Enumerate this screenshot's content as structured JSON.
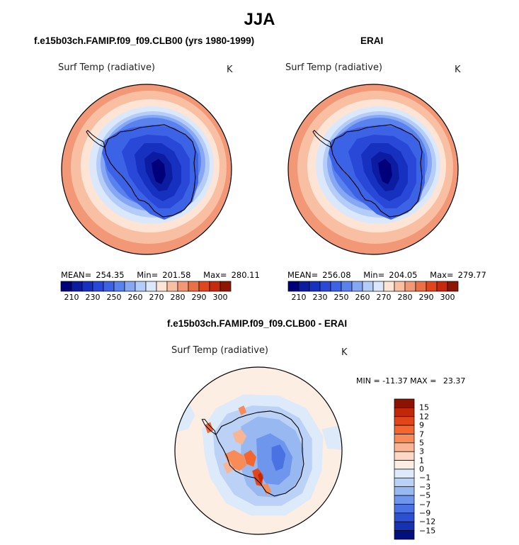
{
  "figure_title": "JJA",
  "chart_data": [
    {
      "type": "heatmap",
      "projection": "south-polar-stereographic",
      "title": "f.e15b03ch.FAMIP.f09_f09.CLB00 (yrs 1980-1999)",
      "variable": "Surf Temp (radiative)",
      "units": "K",
      "stats": {
        "mean_label": "MEAN=",
        "mean": "254.35",
        "min_label": "Min=",
        "min": "201.58",
        "max_label": "Max=",
        "max": "280.11"
      },
      "levels": [
        210,
        220,
        230,
        240,
        250,
        255,
        260,
        265,
        270,
        275,
        280,
        285,
        290,
        295,
        300
      ],
      "tick_labels": [
        "210",
        "230",
        "250",
        "260",
        "270",
        "280",
        "290",
        "300"
      ],
      "colors": [
        "#00007a",
        "#0c1ca0",
        "#1630c0",
        "#2a48d8",
        "#3c62e6",
        "#5a82ee",
        "#86a8f4",
        "#b4cdf8",
        "#dbe8fb",
        "#fde4d4",
        "#f9bfa2",
        "#f39877",
        "#ec7045",
        "#e0461e",
        "#c62a0c",
        "#8f1603"
      ]
    },
    {
      "type": "heatmap",
      "projection": "south-polar-stereographic",
      "title": "ERAI",
      "variable": "Surf Temp (radiative)",
      "units": "K",
      "stats": {
        "mean_label": "MEAN=",
        "mean": "256.08",
        "min_label": "Min=",
        "min": "204.05",
        "max_label": "Max=",
        "max": "279.77"
      },
      "levels": [
        210,
        220,
        230,
        240,
        250,
        255,
        260,
        265,
        270,
        275,
        280,
        285,
        290,
        295,
        300
      ],
      "tick_labels": [
        "210",
        "230",
        "250",
        "260",
        "270",
        "280",
        "290",
        "300"
      ],
      "colors": [
        "#00007a",
        "#0c1ca0",
        "#1630c0",
        "#2a48d8",
        "#3c62e6",
        "#5a82ee",
        "#86a8f4",
        "#b4cdf8",
        "#dbe8fb",
        "#fde4d4",
        "#f9bfa2",
        "#f39877",
        "#ec7045",
        "#e0461e",
        "#c62a0c",
        "#8f1603"
      ]
    },
    {
      "type": "heatmap",
      "projection": "south-polar-stereographic",
      "title": "f.e15b03ch.FAMIP.f09_f09.CLB00 - ERAI",
      "variable": "Surf Temp (radiative)",
      "units": "K",
      "min_label": "MIN =",
      "min": "-11.37",
      "max_label": "MAX =",
      "max": "23.37",
      "levels": [
        -15,
        -12,
        -9,
        -7,
        -5,
        -3,
        -1,
        0,
        1,
        3,
        5,
        7,
        9,
        12,
        15
      ],
      "tick_labels": [
        "15",
        "12",
        "9",
        "7",
        "5",
        "3",
        "1",
        "0",
        "−1",
        "−3",
        "−5",
        "−7",
        "−9",
        "−12",
        "−15"
      ],
      "colors": [
        "#8c1202",
        "#c02808",
        "#e24618",
        "#f5662e",
        "#f88c58",
        "#f9b493",
        "#fbd9c6",
        "#fdeee3",
        "#dceafa",
        "#bbd2f6",
        "#98b8f2",
        "#6e96ec",
        "#4a72e2",
        "#2c50d2",
        "#1632b4",
        "#02107e"
      ]
    }
  ]
}
